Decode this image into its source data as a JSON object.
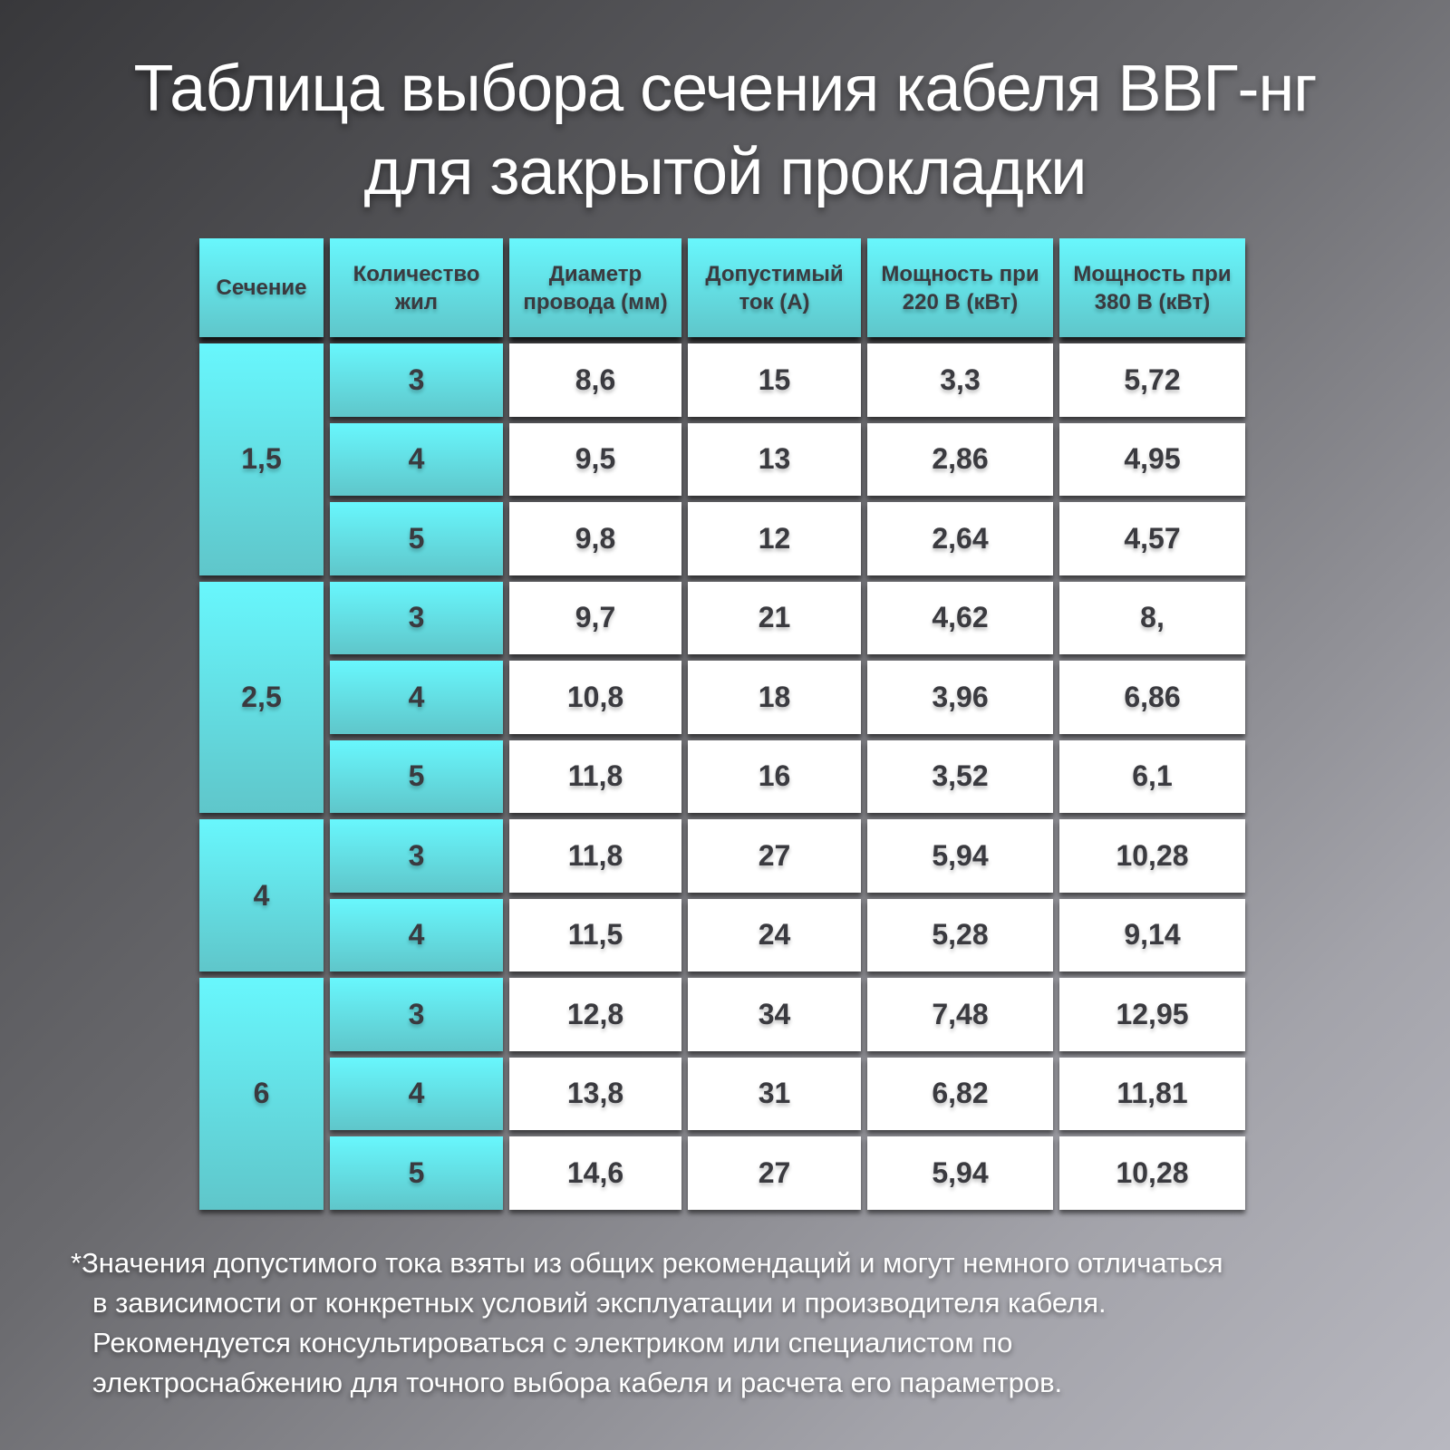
{
  "title": [
    "Таблица выбора сечения кабеля ВВГ-нг",
    "для закрытой прокладки"
  ],
  "colors": {
    "accent_cyan": "#68f7fd",
    "cell_white": "#ffffff",
    "text": "#3a3a3f"
  },
  "table": {
    "headers": [
      "Сечение",
      "Количество жил",
      "Диаметр провода (мм)",
      "Допустимый ток (А)",
      "Мощность при 220 В (кВт)",
      "Мощность при 380 В (кВт)"
    ],
    "groups": [
      {
        "section": "1,5",
        "rows": [
          [
            "3",
            "8,6",
            "15",
            "3,3",
            "5,72"
          ],
          [
            "4",
            "9,5",
            "13",
            "2,86",
            "4,95"
          ],
          [
            "5",
            "9,8",
            "12",
            "2,64",
            "4,57"
          ]
        ]
      },
      {
        "section": "2,5",
        "rows": [
          [
            "3",
            "9,7",
            "21",
            "4,62",
            "8,"
          ],
          [
            "4",
            "10,8",
            "18",
            "3,96",
            "6,86"
          ],
          [
            "5",
            "11,8",
            "16",
            "3,52",
            "6,1"
          ]
        ]
      },
      {
        "section": "4",
        "rows": [
          [
            "3",
            "11,8",
            "27",
            "5,94",
            "10,28"
          ],
          [
            "4",
            "11,5",
            "24",
            "5,28",
            "9,14"
          ]
        ]
      },
      {
        "section": "6",
        "rows": [
          [
            "3",
            "12,8",
            "34",
            "7,48",
            "12,95"
          ],
          [
            "4",
            "13,8",
            "31",
            "6,82",
            "11,81"
          ],
          [
            "5",
            "14,6",
            "27",
            "5,94",
            "10,28"
          ]
        ]
      }
    ]
  },
  "footnote": [
    "*Значения допустимого тока взяты из общих рекомендаций и могут немного отличаться",
    "в зависимости от конкретных условий эксплуатации и производителя кабеля.",
    "Рекомендуется консультироваться с электриком или специалистом по",
    "электроснабжению для точного выбора кабеля и расчета его параметров."
  ]
}
